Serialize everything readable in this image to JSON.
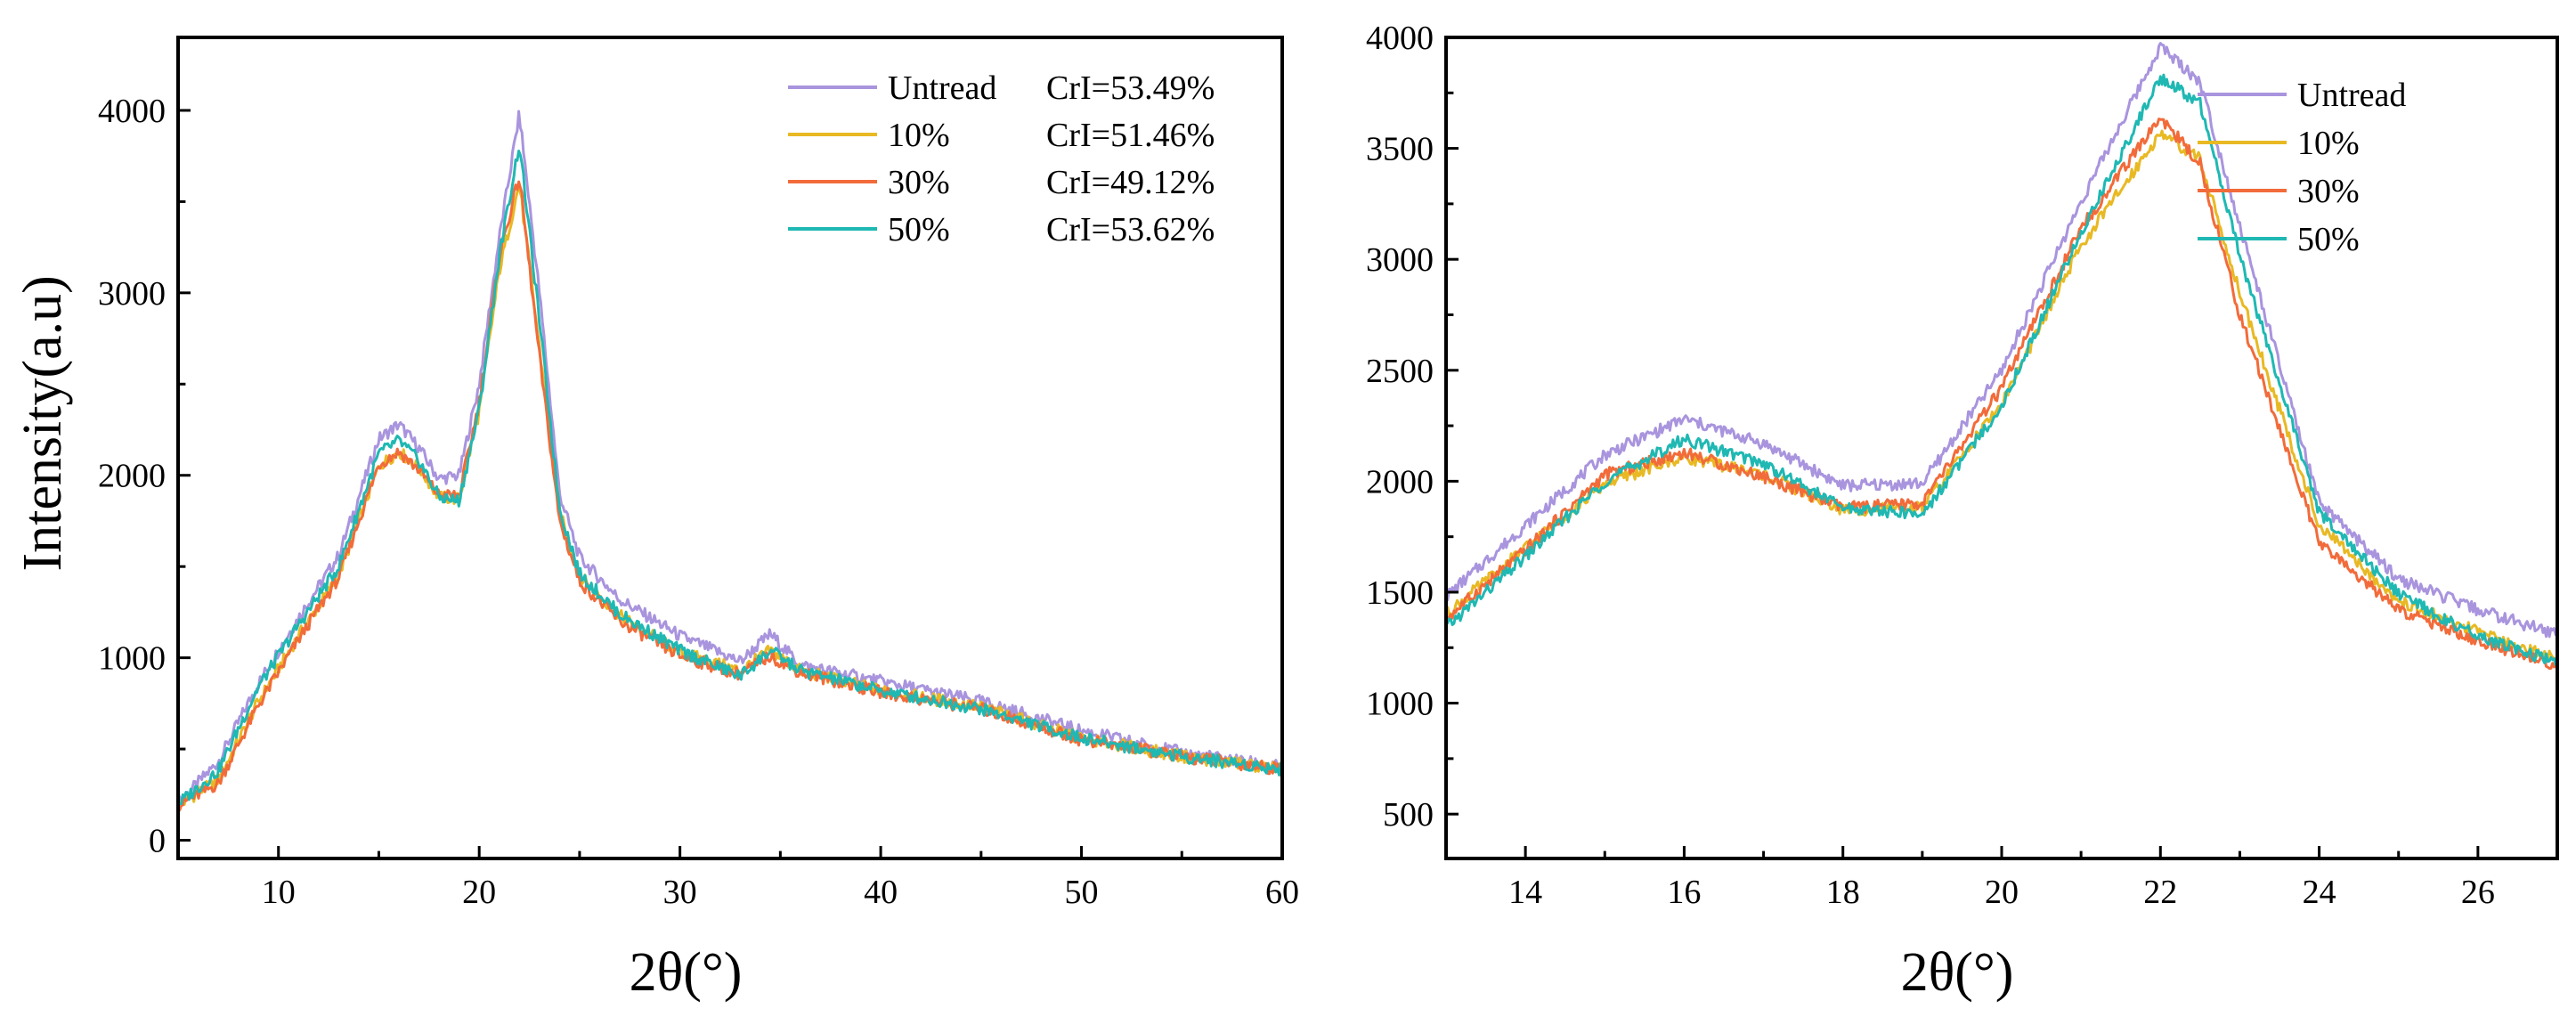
{
  "chart_data": [
    {
      "type": "line",
      "title": "",
      "xlabel": "2θ(°)",
      "ylabel": "Intensity(a.u)",
      "xlim": [
        5,
        60
      ],
      "ylim": [
        -100,
        4400
      ],
      "xticks": [
        10,
        20,
        30,
        40,
        50,
        60
      ],
      "yticks": [
        0,
        1000,
        2000,
        3000,
        4000
      ],
      "grid": false,
      "legend_position": "top-right",
      "x": [
        5,
        7,
        9,
        11,
        13,
        15,
        16,
        17,
        18,
        19,
        20,
        21,
        22,
        23,
        24,
        25,
        27,
        30,
        33,
        34.5,
        36,
        40,
        45,
        50,
        55,
        60
      ],
      "series": [
        {
          "name": "Untread",
          "crI": "CrI=53.49%",
          "color": "#a994de",
          "values": [
            200,
            430,
            860,
            1220,
            1560,
            2200,
            2280,
            2150,
            1980,
            2000,
            2500,
            3300,
            3980,
            3000,
            1900,
            1550,
            1320,
            1120,
            980,
            1130,
            960,
            870,
            760,
            600,
            480,
            400
          ]
        },
        {
          "name": "10%",
          "crI": "CrI=51.46%",
          "color": "#e8b923",
          "values": [
            190,
            330,
            760,
            1120,
            1450,
            2050,
            2130,
            2040,
            1880,
            1870,
            2350,
            3120,
            3600,
            2700,
            1800,
            1450,
            1230,
            1030,
            930,
            1040,
            930,
            820,
            730,
            560,
            460,
            390
          ]
        },
        {
          "name": "30%",
          "crI": "CrI=49.12%",
          "color": "#f26b3a",
          "values": [
            190,
            310,
            740,
            1100,
            1440,
            2060,
            2130,
            2030,
            1890,
            1890,
            2400,
            3200,
            3640,
            2650,
            1750,
            1420,
            1200,
            1010,
            910,
            1010,
            920,
            810,
            720,
            550,
            460,
            390
          ]
        },
        {
          "name": "50%",
          "crI": "CrI=53.62%",
          "color": "#1fb8b3",
          "values": [
            200,
            380,
            840,
            1180,
            1500,
            2120,
            2190,
            2080,
            1880,
            1860,
            2360,
            3200,
            3820,
            2850,
            1820,
            1460,
            1240,
            1040,
            900,
            1040,
            930,
            820,
            720,
            560,
            460,
            390
          ]
        }
      ]
    },
    {
      "type": "line",
      "title": "",
      "xlabel": "2θ(°)",
      "ylabel": "",
      "xlim": [
        13,
        27
      ],
      "ylim": [
        300,
        4000
      ],
      "xticks": [
        14,
        16,
        18,
        20,
        22,
        24,
        26
      ],
      "yticks": [
        500,
        1000,
        1500,
        2000,
        2500,
        3000,
        3500,
        4000
      ],
      "grid": false,
      "legend_position": "top-right",
      "x": [
        13,
        14,
        15,
        16,
        17,
        18,
        19,
        20,
        21,
        22,
        22.5,
        23,
        24,
        25,
        26,
        27
      ],
      "series": [
        {
          "name": "Untread",
          "color": "#a994de",
          "values": [
            1480,
            1800,
            2120,
            2280,
            2170,
            1980,
            1990,
            2500,
            3260,
            3960,
            3800,
            3150,
            1900,
            1560,
            1420,
            1310
          ]
        },
        {
          "name": "10%",
          "color": "#e8b923",
          "values": [
            1400,
            1700,
            1990,
            2110,
            2030,
            1870,
            1880,
            2350,
            3060,
            3570,
            3450,
            2850,
            1800,
            1460,
            1320,
            1200
          ]
        },
        {
          "name": "30%",
          "color": "#f26b3a",
          "values": [
            1380,
            1690,
            2030,
            2130,
            2020,
            1880,
            1900,
            2420,
            3140,
            3640,
            3430,
            2750,
            1720,
            1420,
            1280,
            1170
          ]
        },
        {
          "name": "50%",
          "color": "#1fb8b3",
          "values": [
            1340,
            1660,
            2000,
            2190,
            2080,
            1880,
            1850,
            2340,
            3120,
            3820,
            3700,
            3020,
            1860,
            1490,
            1300,
            1180
          ]
        }
      ]
    }
  ]
}
